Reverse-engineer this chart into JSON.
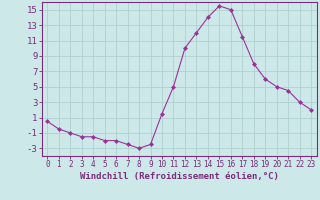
{
  "x": [
    0,
    1,
    2,
    3,
    4,
    5,
    6,
    7,
    8,
    9,
    10,
    11,
    12,
    13,
    14,
    15,
    16,
    17,
    18,
    19,
    20,
    21,
    22,
    23
  ],
  "y": [
    0.5,
    -0.5,
    -1.0,
    -1.5,
    -1.5,
    -2.0,
    -2.0,
    -2.5,
    -3.0,
    -2.5,
    1.5,
    5.0,
    10.0,
    12.0,
    14.0,
    15.5,
    15.0,
    11.5,
    8.0,
    6.0,
    5.0,
    4.5,
    3.0,
    2.0
  ],
  "line_color": "#993399",
  "marker": "D",
  "marker_size": 2,
  "bg_color": "#cce8e8",
  "grid_color": "#aacccc",
  "xlabel": "Windchill (Refroidissement éolien,°C)",
  "ylabel": "",
  "ylim": [
    -4,
    16
  ],
  "yticks": [
    -3,
    -1,
    1,
    3,
    5,
    7,
    9,
    11,
    13,
    15
  ],
  "xlim": [
    -0.5,
    23.5
  ],
  "xticks": [
    0,
    1,
    2,
    3,
    4,
    5,
    6,
    7,
    8,
    9,
    10,
    11,
    12,
    13,
    14,
    15,
    16,
    17,
    18,
    19,
    20,
    21,
    22,
    23
  ],
  "title_color": "#7a2d7a",
  "axis_color": "#7a2d7a",
  "tick_color": "#7a2d7a",
  "xlabel_fontsize": 6.5,
  "ytick_fontsize": 6.5,
  "xtick_fontsize": 5.5
}
